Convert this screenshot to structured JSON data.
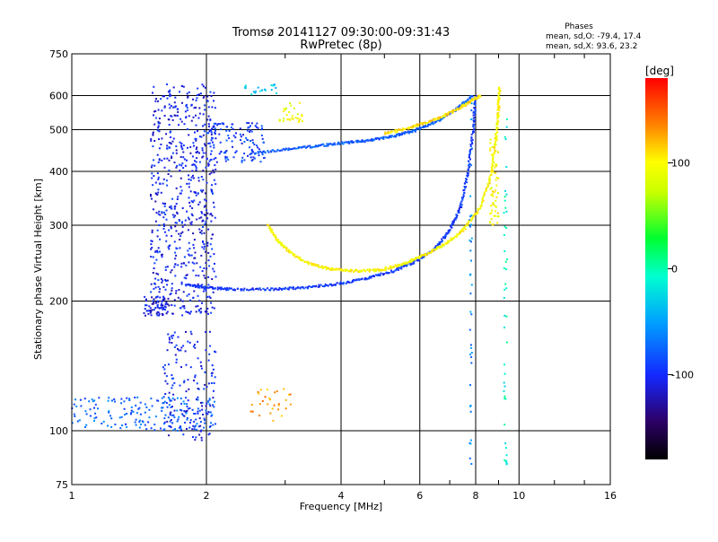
{
  "chart_data": {
    "type": "scatter",
    "title": "Tromsø 20141127 09:30:00-09:31:43",
    "subtitle": "RwPretec (8p)",
    "corner_title": "Phases",
    "corner_lines": [
      "mean, sd,O: -79.4, 17.4",
      "mean, sd,X:  93.6, 23.2"
    ],
    "xlabel": "Frequency [MHz]",
    "ylabel": "Stationary phase Virtual Height [km]",
    "xscale": "log",
    "yscale": "log",
    "xlim": [
      1,
      16
    ],
    "ylim": [
      75,
      750
    ],
    "x_ticks": [
      1,
      2,
      4,
      6,
      8,
      10,
      16
    ],
    "x_tick_labels": [
      "1",
      "2",
      "4",
      "6",
      "8",
      "10",
      "16"
    ],
    "y_ticks": [
      75,
      100,
      200,
      300,
      400,
      500,
      600,
      750
    ],
    "y_tick_labels": [
      "75",
      "100",
      "200",
      "300",
      "400",
      "500",
      "600",
      "750"
    ],
    "grid": true,
    "colorbar": {
      "label": "[deg]",
      "range": [
        -180,
        180
      ],
      "ticks": [
        100,
        0,
        -100
      ],
      "tick_labels": [
        "100",
        "0",
        "-100"
      ],
      "colormap": "rainbow"
    },
    "traces": [
      {
        "id": "F-trace O mode",
        "phase": -95,
        "points": [
          [
            1.8,
            218
          ],
          [
            2.0,
            215
          ],
          [
            2.3,
            213
          ],
          [
            2.8,
            213
          ],
          [
            3.3,
            215
          ],
          [
            3.9,
            219
          ],
          [
            4.5,
            225
          ],
          [
            5.2,
            234
          ],
          [
            5.9,
            248
          ],
          [
            6.5,
            265
          ],
          [
            7.0,
            292
          ],
          [
            7.4,
            330
          ],
          [
            7.7,
            400
          ],
          [
            7.9,
            500
          ],
          [
            8.0,
            600
          ]
        ]
      },
      {
        "id": "F-trace X mode (lower)",
        "phase": 100,
        "points": [
          [
            2.75,
            300
          ],
          [
            2.9,
            275
          ],
          [
            3.1,
            258
          ],
          [
            3.4,
            244
          ],
          [
            3.8,
            237
          ],
          [
            4.3,
            235
          ],
          [
            4.9,
            236
          ],
          [
            5.5,
            244
          ],
          [
            6.1,
            255
          ],
          [
            6.8,
            270
          ],
          [
            7.5,
            292
          ],
          [
            8.2,
            330
          ],
          [
            8.7,
            400
          ],
          [
            8.9,
            480
          ],
          [
            9.0,
            560
          ],
          [
            9.05,
            630
          ]
        ]
      },
      {
        "id": "Upper O trace",
        "phase": -80,
        "points": [
          [
            2.5,
            440
          ],
          [
            3.0,
            450
          ],
          [
            3.5,
            458
          ],
          [
            4.0,
            465
          ],
          [
            4.6,
            472
          ],
          [
            5.2,
            482
          ],
          [
            5.8,
            496
          ],
          [
            6.5,
            520
          ],
          [
            7.2,
            555
          ],
          [
            7.9,
            600
          ]
        ]
      },
      {
        "id": "Upper X trace",
        "phase": 110,
        "points": [
          [
            5.0,
            490
          ],
          [
            5.7,
            505
          ],
          [
            6.4,
            525
          ],
          [
            7.1,
            550
          ],
          [
            7.7,
            578
          ],
          [
            8.2,
            600
          ]
        ]
      }
    ],
    "clouds": [
      {
        "xlim": [
          1.5,
          2.1
        ],
        "ylim": [
          185,
          640
        ],
        "phase": -105,
        "count": 650
      },
      {
        "xlim": [
          1.45,
          1.65
        ],
        "ylim": [
          185,
          205
        ],
        "phase": -110,
        "count": 60
      },
      {
        "xlim": [
          2.0,
          2.7
        ],
        "ylim": [
          420,
          520
        ],
        "phase": -95,
        "count": 120
      },
      {
        "xlim": [
          2.4,
          2.9
        ],
        "ylim": [
          600,
          640
        ],
        "phase": -30,
        "count": 20
      },
      {
        "xlim": [
          1.0,
          2.1
        ],
        "ylim": [
          100,
          120
        ],
        "phase": -75,
        "count": 180
      },
      {
        "xlim": [
          1.6,
          2.1
        ],
        "ylim": [
          95,
          170
        ],
        "phase": -105,
        "count": 160
      },
      {
        "xlim": [
          2.5,
          3.1
        ],
        "ylim": [
          105,
          125
        ],
        "phase": 130,
        "count": 30
      },
      {
        "xlim": [
          2.9,
          3.3
        ],
        "ylim": [
          520,
          580
        ],
        "phase": 90,
        "count": 30
      },
      {
        "xlim": [
          8.6,
          9.0
        ],
        "ylim": [
          300,
          480
        ],
        "phase": 100,
        "count": 60
      },
      {
        "xlim": [
          7.75,
          7.85
        ],
        "ylim": [
          80,
          640
        ],
        "phase": -60,
        "count": 40
      },
      {
        "xlim": [
          9.25,
          9.4
        ],
        "ylim": [
          80,
          600
        ],
        "phase": -10,
        "count": 45
      }
    ]
  }
}
